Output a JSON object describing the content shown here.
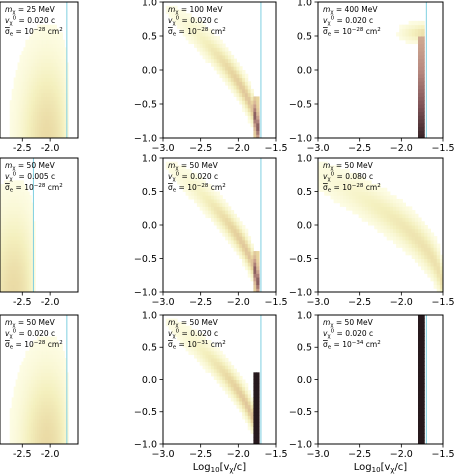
{
  "figure": {
    "xlabel_prefix": "Log",
    "xlabel_sub": "10",
    "xlabel_main": "[v",
    "xlabel_chi": "χ",
    "xlabel_end": "/c]"
  },
  "chart_data": [
    {
      "type": "heatmap",
      "xlim": [
        -2.9,
        -1.5
      ],
      "ylim": [
        -1.0,
        1.0
      ],
      "xticks": [
        "-2.5",
        "-2.0"
      ],
      "xtick_vals": [
        -2.5,
        -2.0
      ],
      "yticks": [],
      "show_xlabel": false,
      "annotation": {
        "mass": "= 25 MeV",
        "v": "= 0.020 c",
        "sigma": "= 10",
        "sigma_exp": "−28",
        "unit": " cm",
        "unit_exp": "2"
      },
      "threshold_x": -1.7,
      "density": "diffuse",
      "cutoff": -1.7
    },
    {
      "type": "heatmap",
      "xlim": [
        -3.0,
        -1.5
      ],
      "ylim": [
        -1.0,
        1.0
      ],
      "xticks": [
        "−3.0",
        "−2.5",
        "−2.0",
        "−1.5"
      ],
      "xtick_vals": [
        -3.0,
        -2.5,
        -2.0,
        -1.5
      ],
      "yticks": [
        "1.0",
        "0.5",
        "0.0",
        "−0.5",
        "−1.0"
      ],
      "ytick_vals": [
        1.0,
        0.5,
        0.0,
        -0.5,
        -1.0
      ],
      "show_xlabel": false,
      "annotation": {
        "mass": "= 100 MeV",
        "v": "= 0.020 c",
        "sigma": "= 10",
        "sigma_exp": "−28",
        "unit": " cm",
        "unit_exp": "2"
      },
      "threshold_x": -1.7,
      "density": "arc",
      "cutoff": -1.73
    },
    {
      "type": "heatmap",
      "xlim": [
        -3.0,
        -1.5
      ],
      "ylim": [
        -1.0,
        1.0
      ],
      "xticks": [
        "−3.0",
        "−2.5",
        "−2.0",
        "−1.5"
      ],
      "xtick_vals": [
        -3.0,
        -2.5,
        -2.0,
        -1.5
      ],
      "yticks": [
        "1.0",
        "0.5",
        "0.0",
        "−0.5",
        "−1.0"
      ],
      "ytick_vals": [
        1.0,
        0.5,
        0.0,
        -0.5,
        -1.0
      ],
      "show_xlabel": false,
      "annotation": {
        "mass": "= 400 MeV",
        "v": "= 0.020 c",
        "sigma": "= 10",
        "sigma_exp": "−28",
        "unit": " cm",
        "unit_exp": "2"
      },
      "threshold_x": -1.7,
      "density": "edge",
      "cutoff": -1.73
    },
    {
      "type": "heatmap",
      "xlim": [
        -2.9,
        -1.5
      ],
      "ylim": [
        -1.0,
        1.0
      ],
      "xticks": [
        "-2.5",
        "-2.0"
      ],
      "xtick_vals": [
        -2.5,
        -2.0
      ],
      "yticks": [],
      "show_xlabel": false,
      "annotation": {
        "mass": "= 50 MeV",
        "v": "= 0.005 c",
        "sigma": "= 10",
        "sigma_exp": "−28",
        "unit": " cm",
        "unit_exp": "2"
      },
      "threshold_x": -2.3,
      "density": "diffuse",
      "cutoff": -2.3
    },
    {
      "type": "heatmap",
      "xlim": [
        -3.0,
        -1.5
      ],
      "ylim": [
        -1.0,
        1.0
      ],
      "xticks": [
        "−3.0",
        "−2.5",
        "−2.0",
        "−1.5"
      ],
      "xtick_vals": [
        -3.0,
        -2.5,
        -2.0,
        -1.5
      ],
      "yticks": [
        "1.0",
        "0.5",
        "0.0",
        "−0.5",
        "−1.0"
      ],
      "ytick_vals": [
        1.0,
        0.5,
        0.0,
        -0.5,
        -1.0
      ],
      "show_xlabel": false,
      "annotation": {
        "mass": "= 50 MeV",
        "v": "= 0.020 c",
        "sigma": "= 10",
        "sigma_exp": "−28",
        "unit": " cm",
        "unit_exp": "2"
      },
      "threshold_x": -1.7,
      "density": "arc",
      "cutoff": -1.73
    },
    {
      "type": "heatmap",
      "xlim": [
        -3.0,
        -1.5
      ],
      "ylim": [
        -1.0,
        1.0
      ],
      "xticks": [
        "−3.0",
        "−2.5",
        "−2.0",
        "−1.5"
      ],
      "xtick_vals": [
        -3.0,
        -2.5,
        -2.0,
        -1.5
      ],
      "yticks": [
        "1.0",
        "0.5",
        "0.0",
        "−0.5",
        "−1.0"
      ],
      "ytick_vals": [
        1.0,
        0.5,
        0.0,
        -0.5,
        -1.0
      ],
      "show_xlabel": false,
      "annotation": {
        "mass": "= 50 MeV",
        "v": "= 0.080 c",
        "sigma": "= 10",
        "sigma_exp": "−28",
        "unit": " cm",
        "unit_exp": "2"
      },
      "threshold_x": -1.1,
      "density": "wide",
      "cutoff": -1.5
    },
    {
      "type": "heatmap",
      "xlim": [
        -2.9,
        -1.5
      ],
      "ylim": [
        -1.0,
        1.0
      ],
      "xticks": [
        "-2.5",
        "-2.0"
      ],
      "xtick_vals": [
        -2.5,
        -2.0
      ],
      "yticks": [],
      "show_xlabel": false,
      "annotation": {
        "mass": "= 50 MeV",
        "v": "= 0.020 c",
        "sigma": "= 10",
        "sigma_exp": "−28",
        "unit": " cm",
        "unit_exp": "2"
      },
      "threshold_x": -1.7,
      "density": "diffuse",
      "cutoff": -1.7
    },
    {
      "type": "heatmap",
      "xlim": [
        -3.0,
        -1.5
      ],
      "ylim": [
        -1.0,
        1.0
      ],
      "xticks": [
        "−3.0",
        "−2.5",
        "−2.0",
        "−1.5"
      ],
      "xtick_vals": [
        -3.0,
        -2.5,
        -2.0,
        -1.5
      ],
      "yticks": [
        "1.0",
        "0.5",
        "0.0",
        "−0.5",
        "−1.0"
      ],
      "ytick_vals": [
        1.0,
        0.5,
        0.0,
        -0.5,
        -1.0
      ],
      "show_xlabel": true,
      "annotation": {
        "mass": "= 50 MeV",
        "v": "= 0.020 c",
        "sigma": "= 10",
        "sigma_exp": "−31",
        "unit": " cm",
        "unit_exp": "2"
      },
      "threshold_x": -1.7,
      "density": "arc-dark",
      "cutoff": -1.73
    },
    {
      "type": "heatmap",
      "xlim": [
        -3.0,
        -1.5
      ],
      "ylim": [
        -1.0,
        1.0
      ],
      "xticks": [
        "−3.0",
        "−2.5",
        "−2.0",
        "−1.5"
      ],
      "xtick_vals": [
        -3.0,
        -2.5,
        -2.0,
        -1.5
      ],
      "yticks": [
        "1.0",
        "0.5",
        "0.0",
        "−0.5",
        "−1.0"
      ],
      "ytick_vals": [
        1.0,
        0.5,
        0.0,
        -0.5,
        -1.0
      ],
      "show_xlabel": true,
      "annotation": {
        "mass": "= 50 MeV",
        "v": "= 0.020 c",
        "sigma": "= 10",
        "sigma_exp": "−34",
        "unit": " cm",
        "unit_exp": "2"
      },
      "threshold_x": -1.7,
      "density": "line",
      "cutoff": -1.73
    }
  ]
}
